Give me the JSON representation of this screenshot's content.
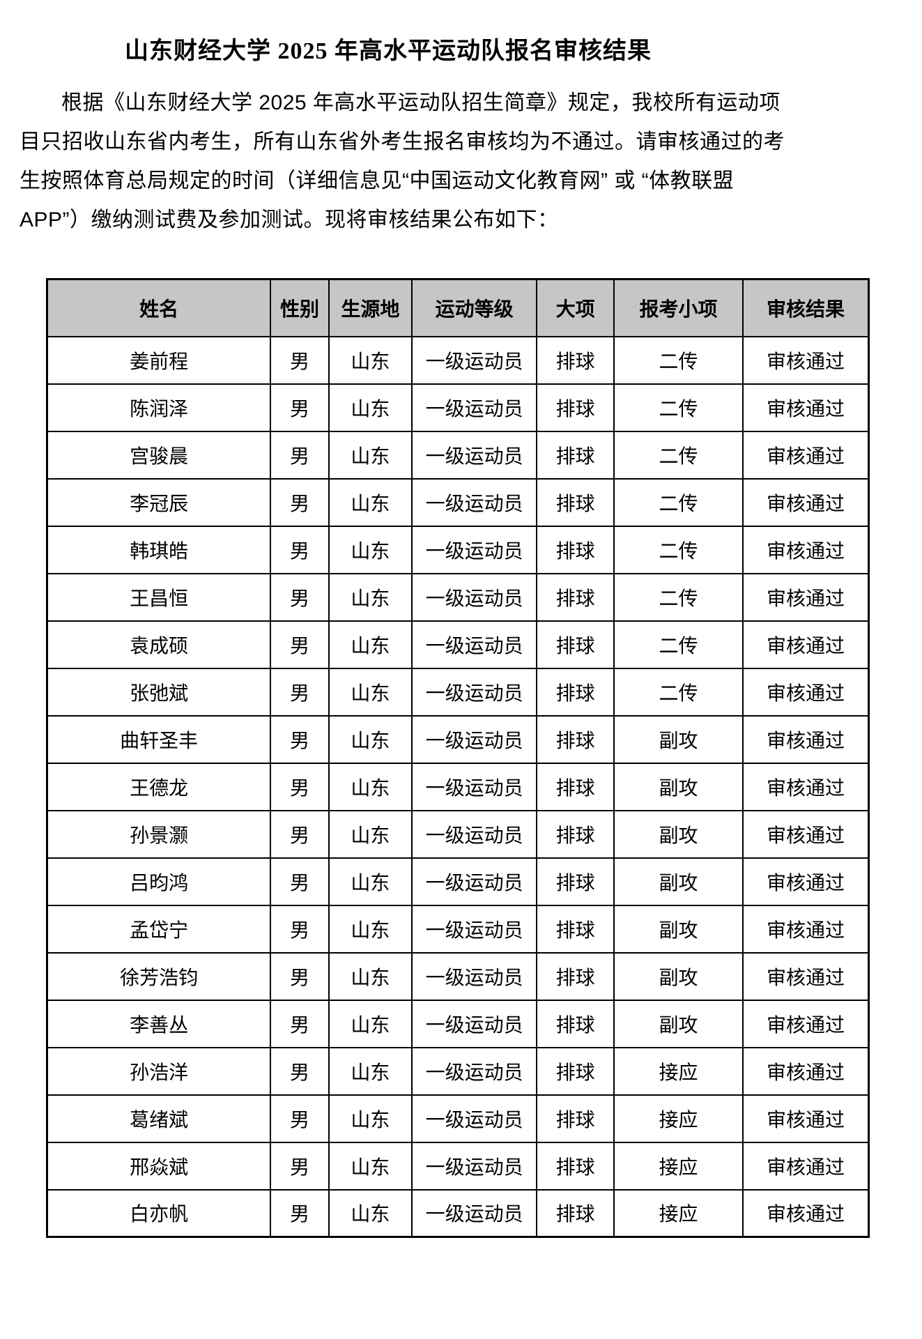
{
  "doc": {
    "title": "山东财经大学 2025 年高水平运动队报名审核结果",
    "paragraph_lines": [
      "根据《山东财经大学 2025 年高水平运动队招生简章》规定，我校所有运动项",
      "目只招收山东省内考生，所有山东省外考生报名审核均为不通过。请审核通过的考",
      "生按照体育总局规定的时间（详细信息见“中国运动文化教育网” 或 “体教联盟",
      "APP”）缴纳测试费及参加测试。现将审核结果公布如下："
    ]
  },
  "table": {
    "headers": [
      "姓名",
      "性别",
      "生源地",
      "运动等级",
      "大项",
      "报考小项",
      "审核结果"
    ],
    "rows": [
      [
        "姜前程",
        "男",
        "山东",
        "一级运动员",
        "排球",
        "二传",
        "审核通过"
      ],
      [
        "陈润泽",
        "男",
        "山东",
        "一级运动员",
        "排球",
        "二传",
        "审核通过"
      ],
      [
        "宫骏晨",
        "男",
        "山东",
        "一级运动员",
        "排球",
        "二传",
        "审核通过"
      ],
      [
        "李冠辰",
        "男",
        "山东",
        "一级运动员",
        "排球",
        "二传",
        "审核通过"
      ],
      [
        "韩琪皓",
        "男",
        "山东",
        "一级运动员",
        "排球",
        "二传",
        "审核通过"
      ],
      [
        "王昌恒",
        "男",
        "山东",
        "一级运动员",
        "排球",
        "二传",
        "审核通过"
      ],
      [
        "袁成硕",
        "男",
        "山东",
        "一级运动员",
        "排球",
        "二传",
        "审核通过"
      ],
      [
        "张弛斌",
        "男",
        "山东",
        "一级运动员",
        "排球",
        "二传",
        "审核通过"
      ],
      [
        "曲轩圣丰",
        "男",
        "山东",
        "一级运动员",
        "排球",
        "副攻",
        "审核通过"
      ],
      [
        "王德龙",
        "男",
        "山东",
        "一级运动员",
        "排球",
        "副攻",
        "审核通过"
      ],
      [
        "孙景灏",
        "男",
        "山东",
        "一级运动员",
        "排球",
        "副攻",
        "审核通过"
      ],
      [
        "吕昀鸿",
        "男",
        "山东",
        "一级运动员",
        "排球",
        "副攻",
        "审核通过"
      ],
      [
        "孟岱宁",
        "男",
        "山东",
        "一级运动员",
        "排球",
        "副攻",
        "审核通过"
      ],
      [
        "徐芳浩钧",
        "男",
        "山东",
        "一级运动员",
        "排球",
        "副攻",
        "审核通过"
      ],
      [
        "李善丛",
        "男",
        "山东",
        "一级运动员",
        "排球",
        "副攻",
        "审核通过"
      ],
      [
        "孙浩洋",
        "男",
        "山东",
        "一级运动员",
        "排球",
        "接应",
        "审核通过"
      ],
      [
        "葛绪斌",
        "男",
        "山东",
        "一级运动员",
        "排球",
        "接应",
        "审核通过"
      ],
      [
        "邢焱斌",
        "男",
        "山东",
        "一级运动员",
        "排球",
        "接应",
        "审核通过"
      ],
      [
        "白亦帆",
        "男",
        "山东",
        "一级运动员",
        "排球",
        "接应",
        "审核通过"
      ]
    ],
    "style": {
      "header_bg": "#c6c6c6",
      "border_color": "#000000",
      "text_color": "#000000"
    }
  }
}
